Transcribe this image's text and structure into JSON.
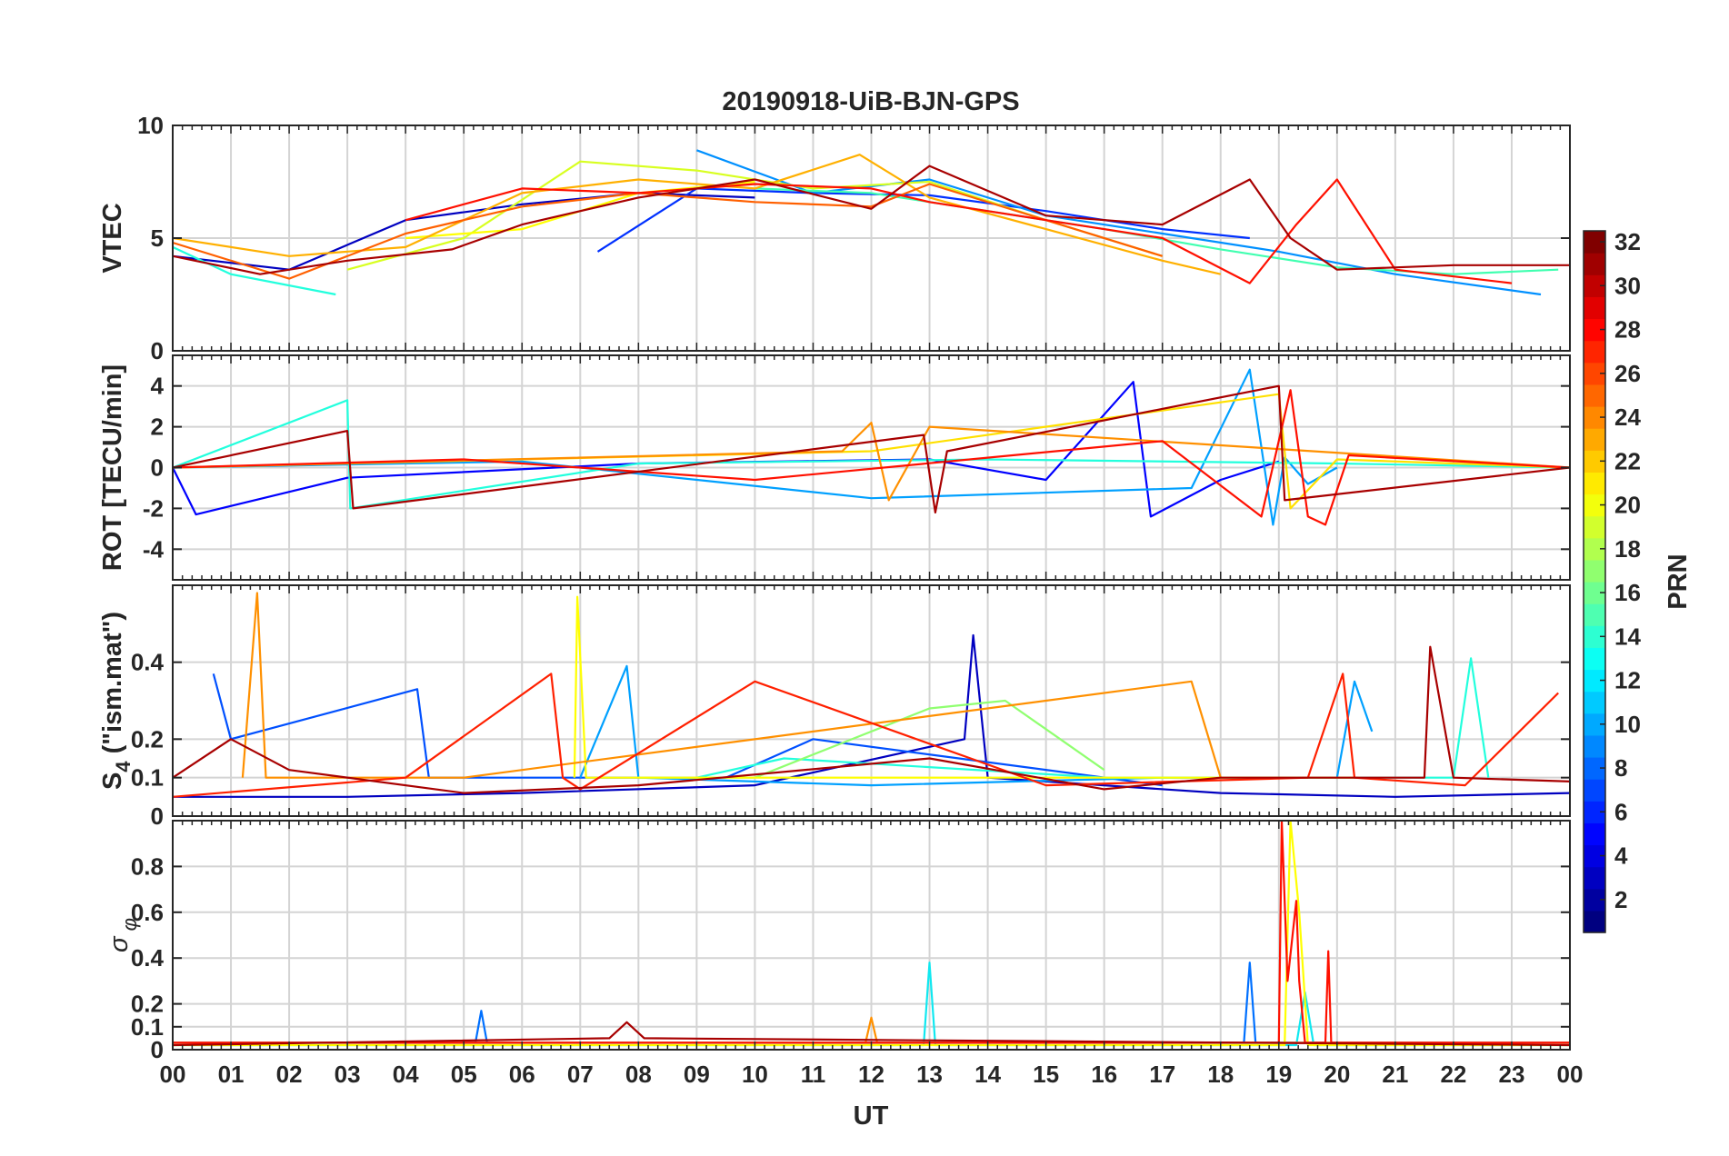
{
  "title": "20190918-UiB-BJN-GPS",
  "xlabel": "UT",
  "x_tick_labels": [
    "00",
    "01",
    "02",
    "03",
    "04",
    "05",
    "06",
    "07",
    "08",
    "09",
    "10",
    "11",
    "12",
    "13",
    "14",
    "15",
    "16",
    "17",
    "18",
    "19",
    "20",
    "21",
    "22",
    "23",
    "00"
  ],
  "colorbar": {
    "label": "PRN",
    "min": 1,
    "max": 32,
    "ticks": [
      2,
      4,
      6,
      8,
      10,
      12,
      14,
      16,
      18,
      20,
      22,
      24,
      26,
      28,
      30,
      32
    ],
    "colormap": "jet"
  },
  "chart_data": [
    {
      "type": "line",
      "ylabel": "VTEC",
      "xlim": [
        0,
        24
      ],
      "ylim": [
        0,
        10
      ],
      "yticks": [
        0,
        5,
        10
      ],
      "grid": true,
      "series": [
        {
          "prn": 2,
          "color": "#0000c0",
          "x": [
            0,
            2,
            4,
            6,
            8,
            10
          ],
          "y": [
            4.2,
            3.6,
            5.8,
            6.5,
            7.0,
            6.8
          ]
        },
        {
          "prn": 5,
          "color": "#0030ff",
          "x": [
            7.3,
            9,
            11,
            13,
            15,
            17,
            18.5
          ],
          "y": [
            4.4,
            7.2,
            7.0,
            6.9,
            6.2,
            5.4,
            5.0
          ]
        },
        {
          "prn": 10,
          "color": "#0090ff",
          "x": [
            9,
            11,
            13,
            15,
            17,
            19,
            21,
            23.5
          ],
          "y": [
            8.9,
            7.0,
            7.6,
            6.0,
            5.2,
            4.4,
            3.4,
            2.5
          ]
        },
        {
          "prn": 14,
          "color": "#22ffdd",
          "x": [
            0,
            1,
            2.8
          ],
          "y": [
            4.6,
            3.4,
            2.5
          ]
        },
        {
          "prn": 15,
          "color": "#40ffb0",
          "x": [
            10,
            12,
            14,
            16,
            18,
            20,
            22,
            23.8
          ],
          "y": [
            7.2,
            7.0,
            6.2,
            5.4,
            4.5,
            3.7,
            3.4,
            3.6
          ]
        },
        {
          "prn": 19,
          "color": "#d8ff20",
          "x": [
            3,
            5,
            7,
            9,
            11,
            13,
            15,
            17
          ],
          "y": [
            3.6,
            5.0,
            8.4,
            8.0,
            7.2,
            7.5,
            5.8,
            4.2
          ]
        },
        {
          "prn": 20,
          "color": "#ffff00",
          "x": [
            4,
            6,
            8,
            10
          ],
          "y": [
            5.0,
            5.4,
            7.0,
            7.5
          ]
        },
        {
          "prn": 22,
          "color": "#ffb000",
          "x": [
            0,
            2,
            4,
            6,
            8,
            10,
            11.8,
            13,
            15,
            17,
            18
          ],
          "y": [
            5.0,
            4.2,
            4.6,
            7.0,
            7.6,
            7.2,
            8.7,
            6.8,
            5.4,
            4.0,
            3.4
          ]
        },
        {
          "prn": 25,
          "color": "#ff6000",
          "x": [
            0,
            2,
            4,
            6,
            8,
            10,
            12,
            13,
            15,
            17
          ],
          "y": [
            4.8,
            3.2,
            5.2,
            6.4,
            7.0,
            6.6,
            6.4,
            7.4,
            5.8,
            4.2
          ]
        },
        {
          "prn": 28,
          "color": "#ff1000",
          "x": [
            4,
            6,
            8,
            10,
            12,
            13,
            15,
            17,
            18.5,
            19.3,
            20,
            21,
            23
          ],
          "y": [
            5.8,
            7.2,
            7.0,
            7.4,
            7.2,
            6.6,
            5.8,
            5.0,
            3.0,
            5.6,
            7.6,
            3.6,
            3.0
          ]
        },
        {
          "prn": 31,
          "color": "#a80000",
          "x": [
            0,
            1.5,
            3,
            4.8,
            6,
            8,
            10,
            12,
            13,
            15,
            17,
            18.5,
            19.2,
            20,
            22,
            24
          ],
          "y": [
            4.2,
            3.4,
            4.0,
            4.5,
            5.6,
            6.8,
            7.6,
            6.3,
            8.2,
            6.0,
            5.6,
            7.6,
            5.0,
            3.6,
            3.8,
            3.8
          ]
        }
      ]
    },
    {
      "type": "line",
      "ylabel": "ROT [TECU/min]",
      "xlim": [
        0,
        24
      ],
      "ylim": [
        -5.5,
        5.5
      ],
      "yticks": [
        -4,
        -2,
        0,
        2,
        4
      ],
      "grid": true,
      "series": [
        {
          "prn": 3,
          "color": "#0000ff",
          "x": [
            0,
            0.4,
            3,
            8,
            13,
            15,
            16.5,
            16.8,
            18,
            19
          ],
          "y": [
            0,
            -2.3,
            -0.5,
            0.2,
            0.4,
            -0.6,
            4.2,
            -2.4,
            -0.6,
            0.3
          ]
        },
        {
          "prn": 11,
          "color": "#00a0ff",
          "x": [
            0,
            6,
            12,
            17.5,
            18.5,
            18.9,
            19.1,
            19.5,
            20
          ],
          "y": [
            0,
            0.3,
            -1.5,
            -1.0,
            4.8,
            -2.8,
            0.5,
            -0.8,
            0
          ]
        },
        {
          "prn": 14,
          "color": "#22ffdd",
          "x": [
            0,
            3,
            3.05,
            8,
            14,
            20,
            24
          ],
          "y": [
            0,
            3.3,
            -2.0,
            0.2,
            0.4,
            0.2,
            0
          ]
        },
        {
          "prn": 21,
          "color": "#ffe000",
          "x": [
            0,
            12,
            19,
            19.2,
            20,
            24
          ],
          "y": [
            0,
            0.8,
            3.6,
            -2.0,
            0.4,
            0
          ]
        },
        {
          "prn": 23,
          "color": "#ff9000",
          "x": [
            0,
            11.5,
            12,
            12.3,
            13,
            24
          ],
          "y": [
            0,
            0.8,
            2.2,
            -1.6,
            2.0,
            0
          ]
        },
        {
          "prn": 28,
          "color": "#ff1000",
          "x": [
            0,
            5,
            10,
            17,
            18.7,
            19.2,
            19.5,
            19.8,
            20.2,
            24
          ],
          "y": [
            0,
            0.4,
            -0.6,
            1.3,
            -2.4,
            3.8,
            -2.4,
            -2.8,
            0.6,
            0
          ]
        },
        {
          "prn": 31,
          "color": "#a80000",
          "x": [
            0,
            3,
            3.1,
            12.9,
            13.1,
            13.3,
            19,
            19.1,
            24
          ],
          "y": [
            0,
            1.8,
            -2.0,
            1.6,
            -2.2,
            0.8,
            4.0,
            -1.6,
            0
          ]
        }
      ]
    },
    {
      "type": "line",
      "ylabel": "S4 (\"ism.mat\")",
      "xlim": [
        0,
        24
      ],
      "ylim": [
        0,
        0.6
      ],
      "yticks": [
        0,
        0.1,
        0.2,
        0.4
      ],
      "grid": true,
      "series": [
        {
          "prn": 2,
          "color": "#0000c0",
          "x": [
            0,
            3,
            6,
            10,
            13.6,
            13.75,
            14,
            18,
            21,
            24
          ],
          "y": [
            0.05,
            0.05,
            0.06,
            0.08,
            0.2,
            0.47,
            0.1,
            0.06,
            0.05,
            0.06
          ]
        },
        {
          "prn": 6,
          "color": "#0050ff",
          "x": [
            0.7,
            1,
            4.2,
            4.4,
            9.5,
            11,
            17
          ],
          "y": [
            0.37,
            0.2,
            0.33,
            0.1,
            0.1,
            0.2,
            0.08
          ]
        },
        {
          "prn": 11,
          "color": "#00a0ff",
          "x": [
            7,
            7.8,
            8,
            12,
            17,
            20,
            20.3,
            20.6
          ],
          "y": [
            0.1,
            0.39,
            0.1,
            0.08,
            0.1,
            0.1,
            0.35,
            0.22
          ]
        },
        {
          "prn": 14,
          "color": "#22ffdd",
          "x": [
            9,
            10.5,
            16,
            22,
            22.3,
            22.6
          ],
          "y": [
            0.1,
            0.15,
            0.1,
            0.1,
            0.41,
            0.1
          ]
        },
        {
          "prn": 17,
          "color": "#90ff70",
          "x": [
            8,
            10,
            13,
            14.3,
            16
          ],
          "y": [
            0.1,
            0.1,
            0.28,
            0.3,
            0.12
          ]
        },
        {
          "prn": 20,
          "color": "#ffff00",
          "x": [
            6.9,
            6.95,
            7.1,
            9,
            15,
            18,
            20.4
          ],
          "y": [
            0.1,
            0.57,
            0.1,
            0.1,
            0.1,
            0.1,
            0.1
          ]
        },
        {
          "prn": 23,
          "color": "#ff9000",
          "x": [
            1.2,
            1.45,
            1.6,
            5,
            17.5,
            18
          ],
          "y": [
            0.1,
            0.58,
            0.1,
            0.1,
            0.35,
            0.1
          ]
        },
        {
          "prn": 27,
          "color": "#ff2000",
          "x": [
            0,
            4,
            6.5,
            6.7,
            7,
            10,
            15,
            19.5,
            20.1,
            20.3,
            22.2,
            23.8
          ],
          "y": [
            0.05,
            0.1,
            0.37,
            0.1,
            0.07,
            0.35,
            0.08,
            0.1,
            0.37,
            0.1,
            0.08,
            0.32
          ]
        },
        {
          "prn": 31,
          "color": "#a80000",
          "x": [
            0,
            1,
            2,
            5,
            8,
            13,
            16,
            18,
            21.5,
            21.6,
            22,
            24
          ],
          "y": [
            0.1,
            0.2,
            0.12,
            0.06,
            0.08,
            0.15,
            0.07,
            0.1,
            0.1,
            0.44,
            0.1,
            0.09
          ]
        }
      ]
    },
    {
      "type": "line",
      "ylabel": "σφ",
      "xlim": [
        0,
        24
      ],
      "ylim": [
        0,
        1
      ],
      "yticks": [
        0,
        0.1,
        0.2,
        0.4,
        0.6,
        0.8
      ],
      "grid": true,
      "series": [
        {
          "prn": 9,
          "color": "#0070ff",
          "x": [
            0,
            5.2,
            5.3,
            5.4,
            18.4,
            18.5,
            18.6,
            24
          ],
          "y": [
            0.03,
            0.03,
            0.17,
            0.03,
            0.03,
            0.38,
            0.03,
            0.03
          ]
        },
        {
          "prn": 13,
          "color": "#10e8f0",
          "x": [
            0,
            12.9,
            13.0,
            13.1,
            19.3,
            19.45,
            19.6,
            24
          ],
          "y": [
            0.02,
            0.02,
            0.38,
            0.02,
            0.02,
            0.25,
            0.02,
            0.02
          ]
        },
        {
          "prn": 20,
          "color": "#ffff00",
          "x": [
            0,
            19.1,
            19.2,
            19.35,
            19.5,
            24
          ],
          "y": [
            0.02,
            0.02,
            1.0,
            0.6,
            0.02,
            0.02
          ]
        },
        {
          "prn": 23,
          "color": "#ff9000",
          "x": [
            0,
            11.9,
            12.0,
            12.1,
            24
          ],
          "y": [
            0.03,
            0.03,
            0.14,
            0.03,
            0.03
          ]
        },
        {
          "prn": 28,
          "color": "#ff1000",
          "x": [
            0,
            19.0,
            19.05,
            19.15,
            19.3,
            19.35,
            19.45,
            19.8,
            19.85,
            19.9,
            24
          ],
          "y": [
            0.03,
            0.03,
            1.0,
            0.3,
            0.65,
            0.3,
            0.03,
            0.03,
            0.43,
            0.03,
            0.03
          ]
        },
        {
          "prn": 31,
          "color": "#a80000",
          "x": [
            0,
            7.5,
            7.8,
            8.1,
            24
          ],
          "y": [
            0.02,
            0.05,
            0.12,
            0.05,
            0.02
          ]
        }
      ]
    }
  ]
}
